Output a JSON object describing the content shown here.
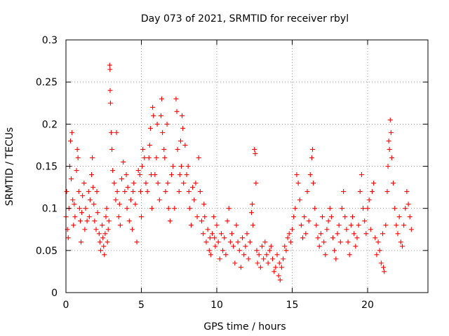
{
  "chart_data": {
    "type": "scatter",
    "title": "Day 073 of 2021, SRMTID for receiver rbyl",
    "xlabel": "GPS time / hours",
    "ylabel": "SRMTID / TECUs",
    "xlim": [
      0,
      24
    ],
    "ylim": [
      0,
      0.3
    ],
    "x_ticks": [
      0,
      5,
      10,
      15,
      20
    ],
    "x_tick_labels": [
      "0",
      "5",
      "10",
      "15",
      "20"
    ],
    "y_ticks": [
      0,
      0.05,
      0.1,
      0.15,
      0.2,
      0.25,
      0.3
    ],
    "y_tick_labels": [
      "0",
      "0.05",
      "0.1",
      "0.15",
      "0.2",
      "0.25",
      "0.3"
    ],
    "grid": true,
    "marker": "plus",
    "series": [
      {
        "name": "SRMTID",
        "color": "#ff0000",
        "points": [
          [
            0.0,
            0.09
          ],
          [
            0.05,
            0.12
          ],
          [
            0.1,
            0.075
          ],
          [
            0.15,
            0.065
          ],
          [
            0.2,
            0.1
          ],
          [
            0.25,
            0.15
          ],
          [
            0.3,
            0.18
          ],
          [
            0.35,
            0.135
          ],
          [
            0.4,
            0.19
          ],
          [
            0.45,
            0.11
          ],
          [
            0.5,
            0.08
          ],
          [
            0.55,
            0.105
          ],
          [
            0.6,
            0.09
          ],
          [
            0.7,
            0.145
          ],
          [
            0.75,
            0.17
          ],
          [
            0.8,
            0.16
          ],
          [
            0.85,
            0.12
          ],
          [
            0.9,
            0.1
          ],
          [
            0.95,
            0.085
          ],
          [
            1.0,
            0.06
          ],
          [
            1.05,
            0.095
          ],
          [
            1.1,
            0.115
          ],
          [
            1.2,
            0.13
          ],
          [
            1.25,
            0.075
          ],
          [
            1.3,
            0.1
          ],
          [
            1.4,
            0.085
          ],
          [
            1.5,
            0.12
          ],
          [
            1.55,
            0.09
          ],
          [
            1.6,
            0.11
          ],
          [
            1.7,
            0.14
          ],
          [
            1.75,
            0.16
          ],
          [
            1.8,
            0.125
          ],
          [
            1.85,
            0.105
          ],
          [
            1.9,
            0.085
          ],
          [
            2.0,
            0.075
          ],
          [
            2.05,
            0.12
          ],
          [
            2.1,
            0.095
          ],
          [
            2.2,
            0.07
          ],
          [
            2.25,
            0.06
          ],
          [
            2.3,
            0.05
          ],
          [
            2.4,
            0.08
          ],
          [
            2.45,
            0.065
          ],
          [
            2.5,
            0.055
          ],
          [
            2.55,
            0.045
          ],
          [
            2.6,
            0.07
          ],
          [
            2.65,
            0.09
          ],
          [
            2.7,
            0.1
          ],
          [
            2.75,
            0.06
          ],
          [
            2.8,
            0.075
          ],
          [
            2.85,
            0.085
          ],
          [
            2.9,
            0.27
          ],
          [
            2.92,
            0.265
          ],
          [
            2.93,
            0.24
          ],
          [
            2.95,
            0.225
          ],
          [
            3.0,
            0.19
          ],
          [
            3.05,
            0.17
          ],
          [
            3.1,
            0.145
          ],
          [
            3.2,
            0.13
          ],
          [
            3.3,
            0.11
          ],
          [
            3.35,
            0.19
          ],
          [
            3.4,
            0.12
          ],
          [
            3.5,
            0.09
          ],
          [
            3.55,
            0.105
          ],
          [
            3.6,
            0.08
          ],
          [
            3.7,
            0.135
          ],
          [
            3.8,
            0.155
          ],
          [
            3.9,
            0.12
          ],
          [
            4.0,
            0.14
          ],
          [
            4.05,
            0.1
          ],
          [
            4.1,
            0.125
          ],
          [
            4.2,
            0.085
          ],
          [
            4.3,
            0.11
          ],
          [
            4.4,
            0.075
          ],
          [
            4.45,
            0.12
          ],
          [
            4.5,
            0.13
          ],
          [
            4.6,
            0.105
          ],
          [
            4.7,
            0.06
          ],
          [
            4.8,
            0.145
          ],
          [
            4.9,
            0.14
          ],
          [
            4.95,
            0.12
          ],
          [
            5.0,
            0.09
          ],
          [
            5.05,
            0.15
          ],
          [
            5.1,
            0.17
          ],
          [
            5.2,
            0.16
          ],
          [
            5.3,
            0.13
          ],
          [
            5.4,
            0.12
          ],
          [
            5.5,
            0.16
          ],
          [
            5.55,
            0.175
          ],
          [
            5.6,
            0.195
          ],
          [
            5.65,
            0.14
          ],
          [
            5.7,
            0.1
          ],
          [
            5.75,
            0.22
          ],
          [
            5.8,
            0.21
          ],
          [
            5.9,
            0.14
          ],
          [
            6.0,
            0.16
          ],
          [
            6.05,
            0.2
          ],
          [
            6.1,
            0.13
          ],
          [
            6.2,
            0.11
          ],
          [
            6.3,
            0.21
          ],
          [
            6.35,
            0.23
          ],
          [
            6.4,
            0.19
          ],
          [
            6.5,
            0.17
          ],
          [
            6.55,
            0.16
          ],
          [
            6.6,
            0.12
          ],
          [
            6.7,
            0.2
          ],
          [
            6.75,
            0.13
          ],
          [
            6.8,
            0.1
          ],
          [
            6.9,
            0.085
          ],
          [
            7.0,
            0.14
          ],
          [
            7.1,
            0.15
          ],
          [
            7.2,
            0.1
          ],
          [
            7.3,
            0.23
          ],
          [
            7.35,
            0.215
          ],
          [
            7.4,
            0.17
          ],
          [
            7.5,
            0.12
          ],
          [
            7.55,
            0.14
          ],
          [
            7.6,
            0.18
          ],
          [
            7.65,
            0.15
          ],
          [
            7.7,
            0.21
          ],
          [
            7.75,
            0.195
          ],
          [
            7.8,
            0.13
          ],
          [
            7.9,
            0.175
          ],
          [
            8.0,
            0.14
          ],
          [
            8.1,
            0.15
          ],
          [
            8.15,
            0.12
          ],
          [
            8.2,
            0.1
          ],
          [
            8.3,
            0.08
          ],
          [
            8.4,
            0.125
          ],
          [
            8.5,
            0.11
          ],
          [
            8.6,
            0.13
          ],
          [
            8.7,
            0.09
          ],
          [
            8.8,
            0.16
          ],
          [
            8.9,
            0.12
          ],
          [
            9.0,
            0.085
          ],
          [
            9.1,
            0.07
          ],
          [
            9.15,
            0.105
          ],
          [
            9.2,
            0.09
          ],
          [
            9.3,
            0.06
          ],
          [
            9.4,
            0.075
          ],
          [
            9.5,
            0.05
          ],
          [
            9.55,
            0.065
          ],
          [
            9.6,
            0.045
          ],
          [
            9.7,
            0.07
          ],
          [
            9.8,
            0.09
          ],
          [
            9.85,
            0.065
          ],
          [
            9.9,
            0.055
          ],
          [
            10.0,
            0.08
          ],
          [
            10.1,
            0.06
          ],
          [
            10.2,
            0.04
          ],
          [
            10.3,
            0.07
          ],
          [
            10.4,
            0.05
          ],
          [
            10.5,
            0.065
          ],
          [
            10.6,
            0.045
          ],
          [
            10.7,
            0.085
          ],
          [
            10.8,
            0.1
          ],
          [
            10.9,
            0.06
          ],
          [
            11.0,
            0.07
          ],
          [
            11.1,
            0.055
          ],
          [
            11.2,
            0.035
          ],
          [
            11.3,
            0.08
          ],
          [
            11.4,
            0.06
          ],
          [
            11.5,
            0.05
          ],
          [
            11.6,
            0.03
          ],
          [
            11.7,
            0.065
          ],
          [
            11.8,
            0.045
          ],
          [
            11.9,
            0.055
          ],
          [
            12.0,
            0.07
          ],
          [
            12.1,
            0.04
          ],
          [
            12.2,
            0.06
          ],
          [
            12.3,
            0.095
          ],
          [
            12.35,
            0.105
          ],
          [
            12.4,
            0.08
          ],
          [
            12.5,
            0.17
          ],
          [
            12.55,
            0.165
          ],
          [
            12.6,
            0.13
          ],
          [
            12.65,
            0.05
          ],
          [
            12.7,
            0.035
          ],
          [
            12.8,
            0.045
          ],
          [
            12.9,
            0.03
          ],
          [
            13.0,
            0.055
          ],
          [
            13.1,
            0.04
          ],
          [
            13.2,
            0.06
          ],
          [
            13.3,
            0.045
          ],
          [
            13.4,
            0.035
          ],
          [
            13.5,
            0.05
          ],
          [
            13.6,
            0.055
          ],
          [
            13.7,
            0.04
          ],
          [
            13.8,
            0.025
          ],
          [
            13.9,
            0.03
          ],
          [
            14.0,
            0.045
          ],
          [
            14.1,
            0.02
          ],
          [
            14.15,
            0.035
          ],
          [
            14.2,
            0.015
          ],
          [
            14.3,
            0.03
          ],
          [
            14.4,
            0.04
          ],
          [
            14.5,
            0.055
          ],
          [
            14.6,
            0.05
          ],
          [
            14.7,
            0.065
          ],
          [
            14.8,
            0.07
          ],
          [
            14.9,
            0.06
          ],
          [
            15.0,
            0.075
          ],
          [
            15.1,
            0.09
          ],
          [
            15.2,
            0.1
          ],
          [
            15.3,
            0.14
          ],
          [
            15.4,
            0.13
          ],
          [
            15.5,
            0.11
          ],
          [
            15.6,
            0.08
          ],
          [
            15.7,
            0.065
          ],
          [
            15.8,
            0.09
          ],
          [
            15.9,
            0.07
          ],
          [
            16.0,
            0.12
          ],
          [
            16.1,
            0.085
          ],
          [
            16.2,
            0.14
          ],
          [
            16.3,
            0.16
          ],
          [
            16.35,
            0.17
          ],
          [
            16.4,
            0.13
          ],
          [
            16.5,
            0.1
          ],
          [
            16.6,
            0.08
          ],
          [
            16.7,
            0.065
          ],
          [
            16.8,
            0.055
          ],
          [
            16.9,
            0.07
          ],
          [
            17.0,
            0.09
          ],
          [
            17.1,
            0.06
          ],
          [
            17.2,
            0.045
          ],
          [
            17.3,
            0.075
          ],
          [
            17.4,
            0.085
          ],
          [
            17.5,
            0.1
          ],
          [
            17.6,
            0.09
          ],
          [
            17.7,
            0.065
          ],
          [
            17.8,
            0.05
          ],
          [
            17.9,
            0.04
          ],
          [
            18.0,
            0.07
          ],
          [
            18.1,
            0.08
          ],
          [
            18.2,
            0.06
          ],
          [
            18.3,
            0.1
          ],
          [
            18.4,
            0.12
          ],
          [
            18.5,
            0.09
          ],
          [
            18.6,
            0.075
          ],
          [
            18.7,
            0.06
          ],
          [
            18.8,
            0.045
          ],
          [
            18.9,
            0.08
          ],
          [
            19.0,
            0.09
          ],
          [
            19.1,
            0.07
          ],
          [
            19.2,
            0.055
          ],
          [
            19.3,
            0.065
          ],
          [
            19.4,
            0.08
          ],
          [
            19.5,
            0.12
          ],
          [
            19.6,
            0.14
          ],
          [
            19.7,
            0.1
          ],
          [
            19.8,
            0.085
          ],
          [
            19.9,
            0.07
          ],
          [
            20.0,
            0.1
          ],
          [
            20.1,
            0.11
          ],
          [
            20.2,
            0.075
          ],
          [
            20.3,
            0.12
          ],
          [
            20.4,
            0.13
          ],
          [
            20.5,
            0.065
          ],
          [
            20.6,
            0.045
          ],
          [
            20.7,
            0.06
          ],
          [
            20.8,
            0.05
          ],
          [
            20.9,
            0.035
          ],
          [
            21.0,
            0.07
          ],
          [
            21.05,
            0.03
          ],
          [
            21.1,
            0.025
          ],
          [
            21.2,
            0.08
          ],
          [
            21.3,
            0.12
          ],
          [
            21.35,
            0.15
          ],
          [
            21.4,
            0.18
          ],
          [
            21.45,
            0.17
          ],
          [
            21.5,
            0.205
          ],
          [
            21.55,
            0.19
          ],
          [
            21.6,
            0.16
          ],
          [
            21.7,
            0.13
          ],
          [
            21.8,
            0.1
          ],
          [
            21.9,
            0.08
          ],
          [
            22.0,
            0.07
          ],
          [
            22.1,
            0.09
          ],
          [
            22.2,
            0.06
          ],
          [
            22.3,
            0.055
          ],
          [
            22.4,
            0.08
          ],
          [
            22.5,
            0.1
          ],
          [
            22.6,
            0.12
          ],
          [
            22.7,
            0.105
          ],
          [
            22.8,
            0.09
          ],
          [
            22.9,
            0.075
          ]
        ]
      }
    ]
  }
}
